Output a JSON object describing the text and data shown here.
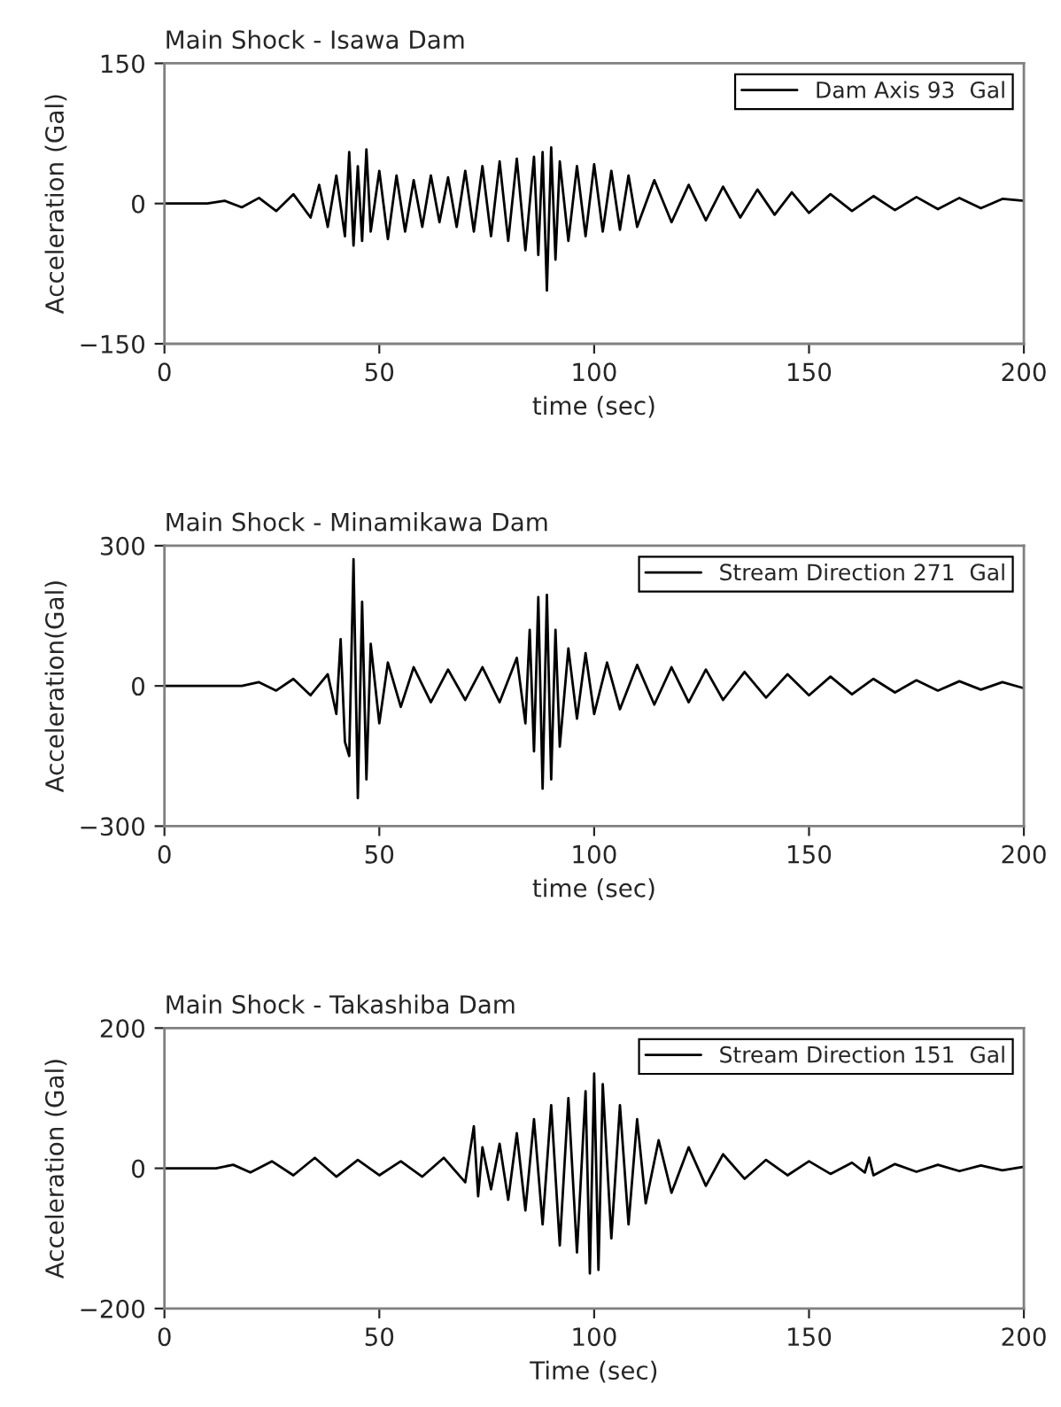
{
  "chart_data": [
    {
      "type": "line",
      "title": "Main Shock - Isawa Dam",
      "xlabel": "time (sec)",
      "ylabel": "Acceleration (Gal)",
      "xlim": [
        0,
        200
      ],
      "xticks": [
        0,
        50,
        100,
        150,
        200
      ],
      "ylim": [
        -150,
        150
      ],
      "yticks": [
        -150,
        0,
        150
      ],
      "grid": false,
      "legend": "top right",
      "series": [
        {
          "name": "Dam Axis 93  Gal",
          "color": "#000000",
          "x": [
            0,
            10,
            14,
            18,
            22,
            26,
            30,
            34,
            36,
            38,
            40,
            42,
            43,
            44,
            45,
            46,
            47,
            48,
            50,
            52,
            54,
            56,
            58,
            60,
            62,
            64,
            66,
            68,
            70,
            72,
            74,
            76,
            78,
            80,
            82,
            84,
            86,
            87,
            88,
            89,
            90,
            91,
            92,
            94,
            96,
            98,
            100,
            102,
            104,
            106,
            108,
            110,
            114,
            118,
            122,
            126,
            130,
            134,
            138,
            142,
            146,
            150,
            155,
            160,
            165,
            170,
            175,
            180,
            185,
            190,
            195,
            200
          ],
          "values": [
            0,
            0,
            3,
            -4,
            6,
            -8,
            10,
            -15,
            20,
            -25,
            30,
            -35,
            55,
            -45,
            40,
            -40,
            58,
            -30,
            35,
            -38,
            30,
            -30,
            25,
            -25,
            30,
            -20,
            28,
            -25,
            35,
            -30,
            40,
            -35,
            45,
            -40,
            48,
            -50,
            50,
            -55,
            55,
            -93,
            60,
            -60,
            45,
            -40,
            40,
            -35,
            42,
            -30,
            35,
            -28,
            30,
            -25,
            25,
            -20,
            20,
            -18,
            18,
            -15,
            15,
            -12,
            12,
            -10,
            10,
            -8,
            8,
            -7,
            7,
            -6,
            6,
            -5,
            5,
            3
          ]
        }
      ]
    },
    {
      "type": "line",
      "title": "Main Shock - Minamikawa Dam",
      "xlabel": "time (sec)",
      "ylabel": "Acceleration(Gal)",
      "xlim": [
        0,
        200
      ],
      "xticks": [
        0,
        50,
        100,
        150,
        200
      ],
      "ylim": [
        -300,
        300
      ],
      "yticks": [
        -300,
        0,
        300
      ],
      "grid": false,
      "legend": "top right",
      "series": [
        {
          "name": "Stream Direction 271  Gal",
          "color": "#000000",
          "x": [
            0,
            18,
            22,
            26,
            30,
            34,
            38,
            40,
            41,
            42,
            43,
            44,
            45,
            46,
            47,
            48,
            50,
            52,
            55,
            58,
            62,
            66,
            70,
            74,
            78,
            82,
            84,
            85,
            86,
            87,
            88,
            89,
            90,
            91,
            92,
            94,
            96,
            98,
            100,
            103,
            106,
            110,
            114,
            118,
            122,
            126,
            130,
            135,
            140,
            145,
            150,
            155,
            160,
            165,
            170,
            175,
            180,
            185,
            190,
            195,
            200
          ],
          "values": [
            0,
            0,
            8,
            -10,
            15,
            -20,
            25,
            -60,
            100,
            -120,
            -150,
            271,
            -240,
            180,
            -200,
            90,
            -80,
            50,
            -45,
            40,
            -35,
            35,
            -30,
            40,
            -35,
            60,
            -80,
            120,
            -140,
            190,
            -220,
            195,
            -200,
            120,
            -130,
            80,
            -70,
            70,
            -60,
            50,
            -50,
            45,
            -40,
            40,
            -35,
            35,
            -30,
            30,
            -25,
            25,
            -20,
            20,
            -18,
            15,
            -14,
            12,
            -10,
            10,
            -8,
            8,
            -5
          ]
        }
      ]
    },
    {
      "type": "line",
      "title": "Main Shock - Takashiba Dam",
      "xlabel": "Time (sec)",
      "ylabel": "Acceleration (Gal)",
      "xlim": [
        0,
        200
      ],
      "xticks": [
        0,
        50,
        100,
        150,
        200
      ],
      "ylim": [
        -200,
        200
      ],
      "yticks": [
        -200,
        0,
        200
      ],
      "grid": false,
      "legend": "top right",
      "series": [
        {
          "name": "Stream Direction 151  Gal",
          "color": "#000000",
          "x": [
            0,
            12,
            16,
            20,
            25,
            30,
            35,
            40,
            45,
            50,
            55,
            60,
            65,
            70,
            72,
            73,
            74,
            76,
            78,
            80,
            82,
            84,
            86,
            88,
            90,
            92,
            94,
            96,
            98,
            99,
            100,
            101,
            102,
            104,
            106,
            108,
            110,
            112,
            115,
            118,
            122,
            126,
            130,
            135,
            140,
            145,
            150,
            155,
            160,
            163,
            164,
            165,
            170,
            175,
            180,
            185,
            190,
            195,
            200
          ],
          "values": [
            0,
            0,
            5,
            -6,
            10,
            -10,
            15,
            -12,
            12,
            -10,
            10,
            -12,
            15,
            -20,
            60,
            -40,
            30,
            -30,
            35,
            -45,
            50,
            -60,
            70,
            -80,
            90,
            -110,
            100,
            -120,
            110,
            -150,
            135,
            -145,
            120,
            -100,
            90,
            -80,
            70,
            -50,
            40,
            -35,
            30,
            -25,
            20,
            -15,
            12,
            -10,
            10,
            -8,
            8,
            -6,
            15,
            -10,
            6,
            -5,
            5,
            -4,
            4,
            -3,
            2
          ]
        }
      ]
    }
  ]
}
